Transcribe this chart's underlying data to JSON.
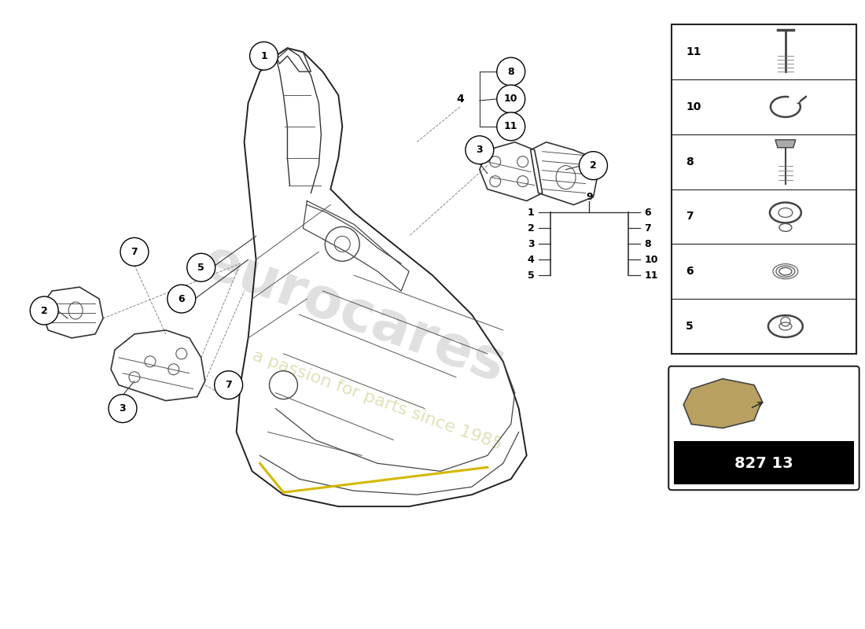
{
  "bg_color": "#ffffff",
  "part_number": "827 13",
  "right_panel_items": [
    "11",
    "10",
    "8",
    "7",
    "6",
    "5"
  ],
  "legend_left": [
    "1",
    "2",
    "3",
    "4",
    "5"
  ],
  "legend_right": [
    "6",
    "7",
    "8",
    "10",
    "11"
  ]
}
